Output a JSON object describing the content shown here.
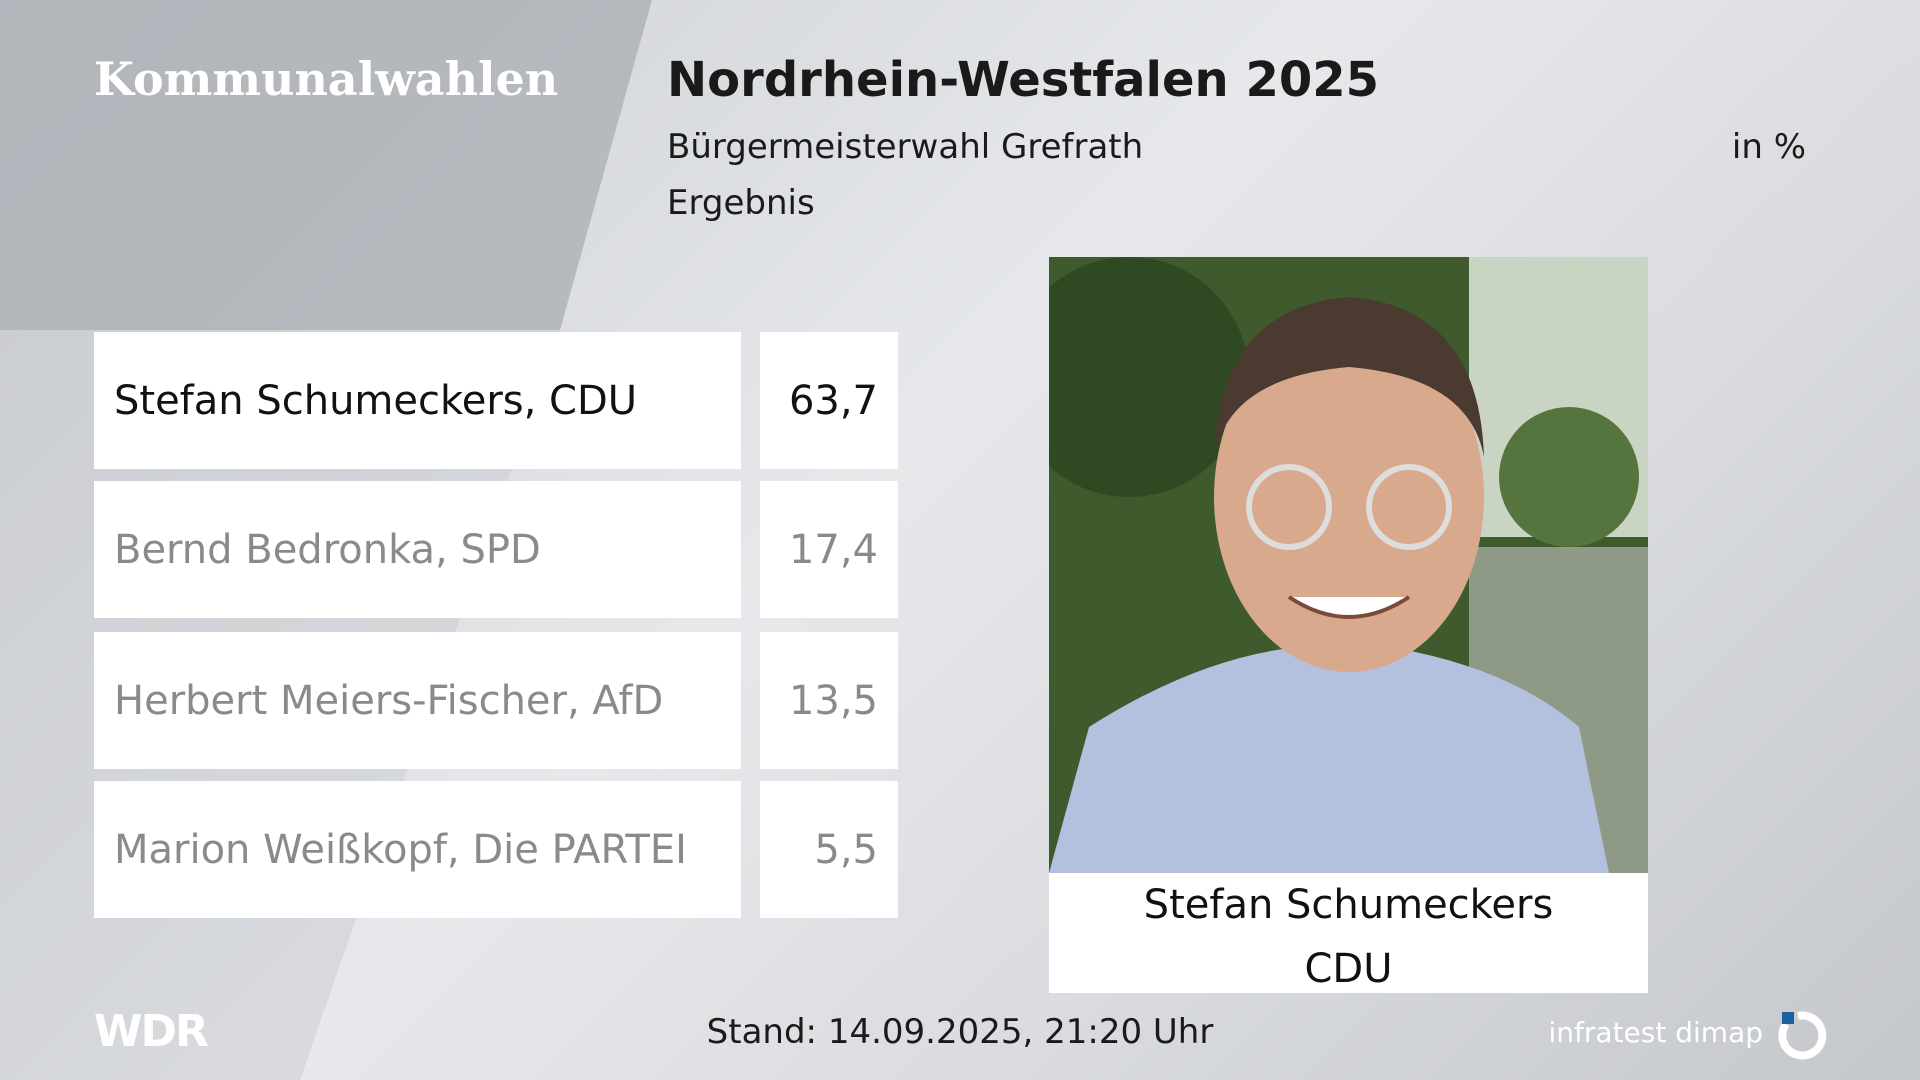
{
  "header": {
    "brand": "Kommunalwahlen",
    "title": "Nordrhein-Westfalen 2025",
    "subtitle": "Bürgermeisterwahl Grefrath",
    "unit": "in %",
    "label": "Ergebnis"
  },
  "results": [
    {
      "candidate": "Stefan Schumeckers, CDU",
      "value": "63,7"
    },
    {
      "candidate": "Bernd Bedronka, SPD",
      "value": "17,4"
    },
    {
      "candidate": "Herbert Meiers-Fischer, AfD",
      "value": "13,5"
    },
    {
      "candidate": "Marion Weißkopf, Die PARTEI",
      "value": "5,5"
    }
  ],
  "photo": {
    "name": "Stefan Schumeckers",
    "party": "CDU"
  },
  "footer": {
    "logo": "WDR",
    "timestamp": "Stand: 14.09.2025, 21:20 Uhr",
    "source": "infratest dimap"
  }
}
